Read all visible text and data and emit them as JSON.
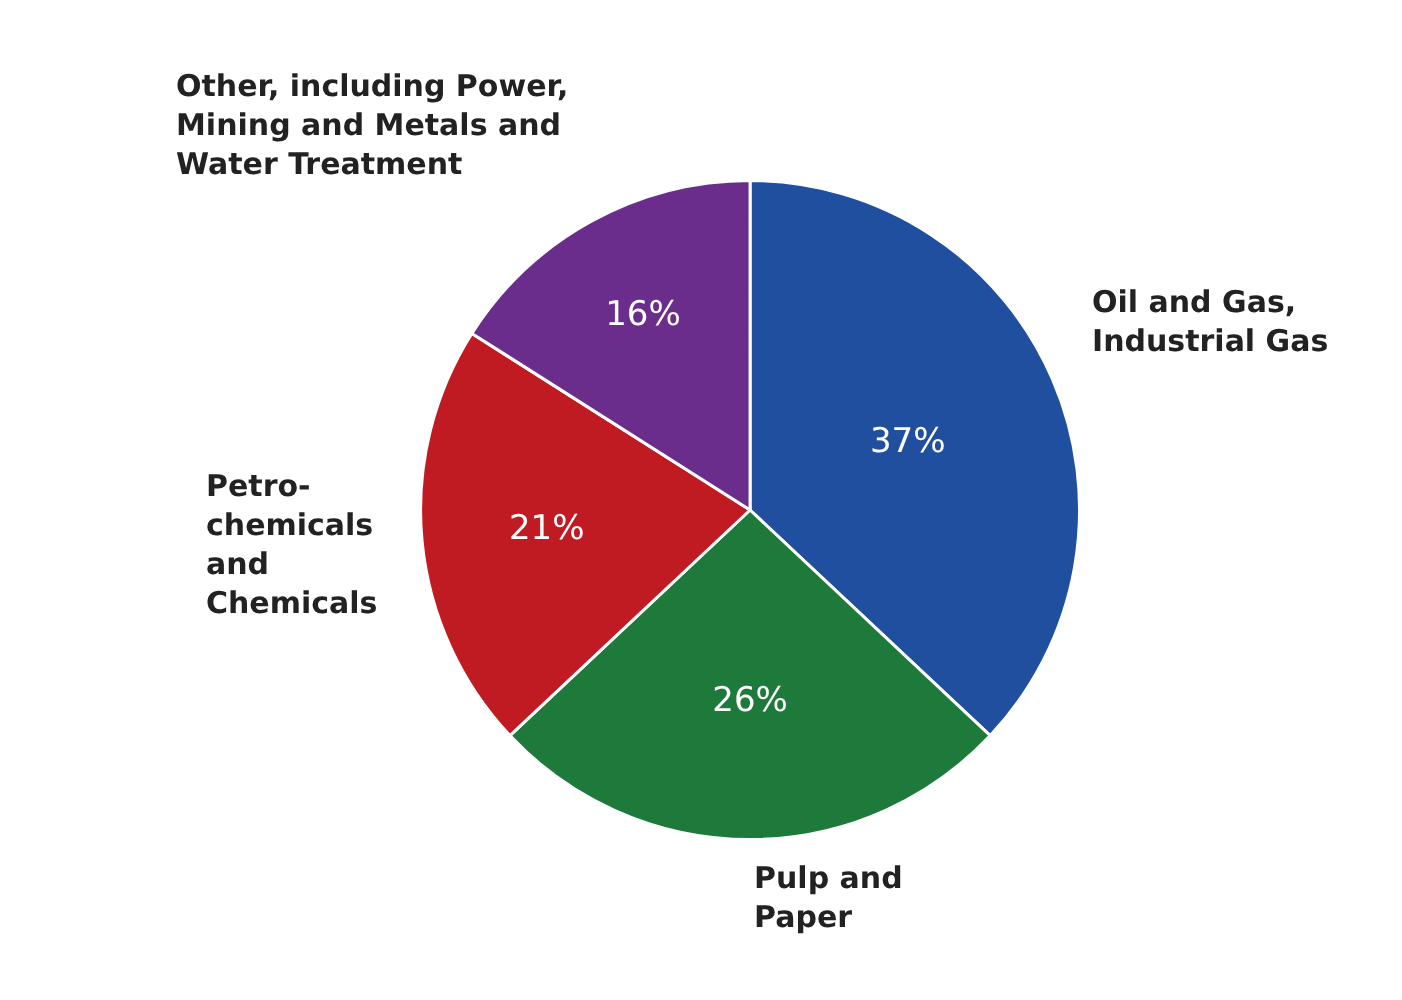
{
  "chart_data": {
    "type": "pie",
    "categories": [
      "Oil and Gas,\nIndustrial Gas",
      "Pulp and\nPaper",
      "Petro-\nchemicals\nand\nChemicals",
      "Other, including Power,\nMining and Metals and\nWater Treatment"
    ],
    "values": [
      37,
      26,
      21,
      16
    ],
    "value_labels": [
      "37%",
      "26%",
      "21%",
      "16%"
    ],
    "colors": [
      "#1f4f9e",
      "#1d7a3b",
      "#c01a22",
      "#6b2d8c"
    ],
    "legend": false
  }
}
